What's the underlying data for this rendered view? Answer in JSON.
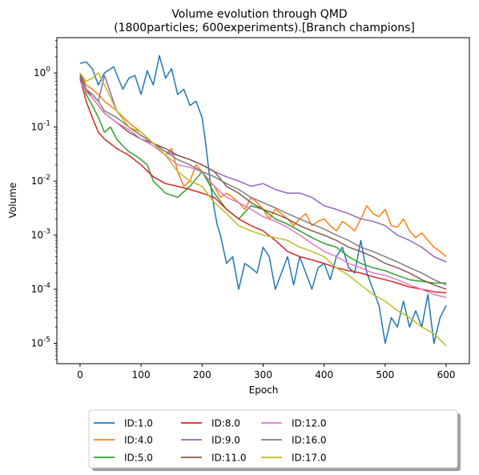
{
  "chart_data": {
    "type": "line",
    "title": "Volume evolution through QMD\n(1800particles; 600experiments).[Branch champions]",
    "title_lines": [
      "Volume evolution through QMD",
      "(1800particles; 600experiments).[Branch champions]"
    ],
    "xlabel": "Epoch",
    "ylabel": "Volume",
    "yscale": "log",
    "xlim": [
      -38,
      638
    ],
    "ylim": [
      4.2e-06,
      4.5
    ],
    "x_ticks": [
      0,
      100,
      200,
      300,
      400,
      500,
      600
    ],
    "y_ticks": [
      {
        "value": 1,
        "label": "10^0"
      },
      {
        "value": 0.1,
        "label": "10^-1"
      },
      {
        "value": 0.01,
        "label": "10^-2"
      },
      {
        "value": 0.001,
        "label": "10^-3"
      },
      {
        "value": 0.0001,
        "label": "10^-4"
      },
      {
        "value": 1e-05,
        "label": "10^-5"
      }
    ],
    "grid": false,
    "legend": {
      "position": "bottom-center",
      "ncol": 4
    },
    "series": [
      {
        "name": "ID:1.0",
        "color": "#1f77b4",
        "x": [
          0,
          10,
          20,
          30,
          40,
          55,
          70,
          80,
          90,
          100,
          110,
          120,
          130,
          140,
          150,
          160,
          170,
          180,
          190,
          200,
          205,
          210,
          215,
          220,
          225,
          230,
          240,
          250,
          260,
          270,
          280,
          290,
          300,
          310,
          320,
          330,
          340,
          350,
          360,
          370,
          380,
          390,
          400,
          410,
          420,
          430,
          440,
          450,
          460,
          470,
          480,
          490,
          500,
          510,
          520,
          530,
          540,
          550,
          560,
          570,
          580,
          590,
          600
        ],
        "y": [
          1.5,
          1.6,
          1.2,
          0.6,
          1.0,
          1.3,
          0.5,
          0.8,
          0.9,
          0.4,
          1.1,
          0.6,
          2.1,
          0.8,
          1.2,
          0.4,
          0.5,
          0.25,
          0.3,
          0.15,
          0.06,
          0.02,
          0.007,
          0.003,
          0.0015,
          0.001,
          0.0003,
          0.0004,
          0.0001,
          0.0003,
          0.00025,
          0.0002,
          0.0006,
          0.0004,
          0.0001,
          0.0002,
          0.0004,
          0.00012,
          0.0004,
          0.0002,
          0.0001,
          0.00025,
          0.0003,
          0.00015,
          0.0004,
          0.0006,
          0.00025,
          0.0002,
          0.0008,
          0.0002,
          0.0001,
          5e-05,
          1e-05,
          3e-05,
          2e-05,
          6e-05,
          2e-05,
          4e-05,
          2e-05,
          8e-05,
          1e-05,
          3e-05,
          5e-05
        ]
      },
      {
        "name": "ID:4.0",
        "color": "#ff7f0e",
        "x": [
          0,
          10,
          20,
          30,
          40,
          60,
          80,
          100,
          120,
          140,
          150,
          160,
          170,
          180,
          190,
          200,
          210,
          220,
          230,
          240,
          250,
          260,
          270,
          280,
          290,
          300,
          310,
          320,
          330,
          340,
          350,
          360,
          370,
          380,
          390,
          400,
          410,
          420,
          430,
          440,
          450,
          460,
          470,
          480,
          490,
          500,
          510,
          520,
          530,
          540,
          550,
          560,
          570,
          580,
          590,
          600
        ],
        "y": [
          1.0,
          0.6,
          0.5,
          0.4,
          0.3,
          0.2,
          0.12,
          0.08,
          0.05,
          0.03,
          0.04,
          0.015,
          0.008,
          0.01,
          0.02,
          0.015,
          0.01,
          0.008,
          0.005,
          0.006,
          0.005,
          0.004,
          0.003,
          0.005,
          0.004,
          0.003,
          0.002,
          0.003,
          0.0025,
          0.002,
          0.0015,
          0.002,
          0.0025,
          0.0015,
          0.0018,
          0.002,
          0.0015,
          0.0012,
          0.0018,
          0.0015,
          0.0012,
          0.002,
          0.0035,
          0.0025,
          0.0022,
          0.003,
          0.0015,
          0.0014,
          0.002,
          0.0012,
          0.0009,
          0.0011,
          0.0008,
          0.0006,
          0.0005,
          0.0004
        ]
      },
      {
        "name": "ID:5.0",
        "color": "#2ca02c",
        "x": [
          0,
          10,
          20,
          30,
          40,
          50,
          60,
          70,
          80,
          90,
          100,
          110,
          120,
          140,
          160,
          180,
          200,
          220,
          240,
          260,
          280,
          300,
          320,
          340,
          360,
          380,
          400,
          420,
          440,
          460,
          480,
          500,
          520,
          540,
          560,
          580,
          600
        ],
        "y": [
          0.9,
          0.4,
          0.25,
          0.15,
          0.08,
          0.1,
          0.06,
          0.045,
          0.035,
          0.03,
          0.025,
          0.02,
          0.01,
          0.006,
          0.005,
          0.008,
          0.015,
          0.006,
          0.003,
          0.002,
          0.0035,
          0.003,
          0.002,
          0.0016,
          0.0012,
          0.0009,
          0.0007,
          0.0006,
          0.0004,
          0.0003,
          0.00025,
          0.00022,
          0.00018,
          0.00015,
          0.00014,
          0.00013,
          0.00013
        ]
      },
      {
        "name": "ID:8.0",
        "color": "#d62728",
        "x": [
          0,
          10,
          20,
          30,
          40,
          60,
          80,
          100,
          120,
          140,
          160,
          180,
          200,
          220,
          240,
          260,
          280,
          300,
          320,
          340,
          360,
          380,
          400,
          420,
          440,
          460,
          480,
          500,
          520,
          540,
          560,
          580,
          600
        ],
        "y": [
          0.8,
          0.3,
          0.15,
          0.08,
          0.06,
          0.04,
          0.03,
          0.02,
          0.012,
          0.009,
          0.008,
          0.007,
          0.006,
          0.005,
          0.003,
          0.002,
          0.0015,
          0.0012,
          0.0008,
          0.0005,
          0.0004,
          0.00035,
          0.0003,
          0.00025,
          0.00022,
          0.0002,
          0.00017,
          0.00015,
          0.00013,
          0.00011,
          0.0001,
          9e-05,
          8.5e-05
        ]
      },
      {
        "name": "ID:9.0",
        "color": "#9467bd",
        "x": [
          0,
          10,
          20,
          30,
          40,
          60,
          80,
          100,
          120,
          140,
          160,
          180,
          200,
          220,
          240,
          260,
          280,
          300,
          320,
          340,
          360,
          380,
          400,
          420,
          440,
          460,
          480,
          500,
          520,
          540,
          560,
          580,
          600
        ],
        "y": [
          1.0,
          0.5,
          0.4,
          0.3,
          0.9,
          0.2,
          0.1,
          0.07,
          0.05,
          0.035,
          0.03,
          0.025,
          0.02,
          0.015,
          0.012,
          0.01,
          0.008,
          0.009,
          0.007,
          0.006,
          0.006,
          0.005,
          0.0035,
          0.003,
          0.0025,
          0.002,
          0.0018,
          0.0015,
          0.001,
          0.0008,
          0.0006,
          0.0004,
          0.00032
        ]
      },
      {
        "name": "ID:11.0",
        "color": "#8c564b",
        "x": [
          0,
          10,
          20,
          30,
          40,
          60,
          80,
          100,
          120,
          140,
          160,
          180,
          200,
          220,
          240,
          260,
          280,
          300,
          320,
          340,
          360,
          380,
          400,
          420,
          440,
          460,
          480,
          500,
          520,
          540,
          560,
          580,
          600
        ],
        "y": [
          0.9,
          0.5,
          0.35,
          0.25,
          0.18,
          0.12,
          0.08,
          0.06,
          0.05,
          0.04,
          0.03,
          0.025,
          0.02,
          0.015,
          0.008,
          0.006,
          0.004,
          0.003,
          0.0025,
          0.002,
          0.0015,
          0.0012,
          0.001,
          0.0008,
          0.0006,
          0.0005,
          0.0004,
          0.0003,
          0.00025,
          0.0002,
          0.00015,
          0.00012,
          0.0001
        ]
      },
      {
        "name": "ID:12.0",
        "color": "#e377c2",
        "x": [
          0,
          10,
          20,
          30,
          40,
          60,
          80,
          100,
          120,
          140,
          160,
          180,
          200,
          220,
          240,
          260,
          280,
          300,
          320,
          340,
          360,
          380,
          400,
          420,
          440,
          460,
          480,
          500,
          520,
          540,
          560,
          580,
          600
        ],
        "y": [
          0.7,
          0.45,
          0.35,
          0.25,
          0.18,
          0.12,
          0.09,
          0.06,
          0.045,
          0.03,
          0.02,
          0.018,
          0.015,
          0.008,
          0.005,
          0.004,
          0.003,
          0.0022,
          0.0018,
          0.0014,
          0.001,
          0.0007,
          0.0005,
          0.0004,
          0.0003,
          0.00025,
          0.0002,
          0.00018,
          0.00015,
          0.00012,
          0.0001,
          8e-05,
          7e-05
        ]
      },
      {
        "name": "ID:16.0",
        "color": "#7f7f7f",
        "x": [
          0,
          10,
          20,
          30,
          40,
          60,
          80,
          100,
          120,
          140,
          160,
          180,
          200,
          220,
          240,
          260,
          280,
          300,
          320,
          340,
          360,
          380,
          400,
          420,
          440,
          460,
          480,
          500,
          520,
          540,
          560,
          580,
          600
        ],
        "y": [
          0.8,
          0.5,
          0.4,
          0.3,
          0.2,
          0.15,
          0.1,
          0.07,
          0.05,
          0.035,
          0.025,
          0.02,
          0.015,
          0.012,
          0.009,
          0.007,
          0.005,
          0.004,
          0.0032,
          0.0025,
          0.002,
          0.0016,
          0.0013,
          0.001,
          0.0008,
          0.0006,
          0.0005,
          0.0004,
          0.00032,
          0.00025,
          0.0002,
          0.00015,
          0.00012
        ]
      },
      {
        "name": "ID:17.0",
        "color": "#bcbd22",
        "x": [
          0,
          10,
          20,
          30,
          40,
          60,
          80,
          100,
          120,
          140,
          160,
          180,
          200,
          220,
          240,
          260,
          280,
          300,
          320,
          340,
          360,
          380,
          400,
          420,
          440,
          460,
          480,
          500,
          520,
          540,
          560,
          580,
          600
        ],
        "y": [
          1.0,
          0.7,
          0.8,
          1.0,
          0.6,
          0.2,
          0.1,
          0.08,
          0.05,
          0.03,
          0.015,
          0.01,
          0.008,
          0.004,
          0.0025,
          0.0015,
          0.0012,
          0.001,
          0.0009,
          0.0008,
          0.0006,
          0.0005,
          0.0004,
          0.00025,
          0.00018,
          0.00012,
          8e-05,
          6e-05,
          4e-05,
          3e-05,
          2e-05,
          1.5e-05,
          9e-06
        ]
      }
    ]
  }
}
